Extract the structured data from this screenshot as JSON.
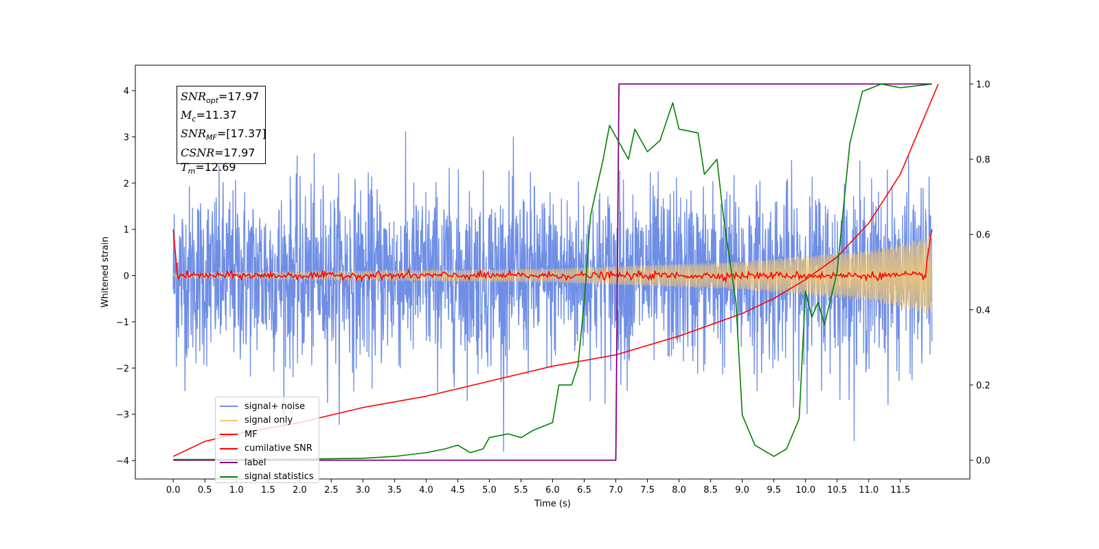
{
  "chart_data": {
    "type": "line",
    "xlabel": "Time (s)",
    "ylabel": "Whitened strain",
    "xlim": [
      -0.6,
      12.6
    ],
    "ylim": [
      -4.4,
      4.55
    ],
    "y2lim": [
      -0.05,
      1.05
    ],
    "x_ticks": [
      "0.0",
      "0.5",
      "1.0",
      "1.5",
      "2.0",
      "2.5",
      "3.0",
      "3.5",
      "4.0",
      "4.5",
      "5.0",
      "5.5",
      "6.0",
      "6.5",
      "7.0",
      "7.5",
      "8.0",
      "8.5",
      "9.0",
      "9.5",
      "10.0",
      "10.5",
      "11.0",
      "11.5"
    ],
    "y_ticks": [
      "4",
      "3",
      "2",
      "1",
      "0",
      "−1",
      "−2",
      "−3",
      "−4"
    ],
    "y2_ticks": [
      "1.0",
      "0.8",
      "0.6",
      "0.4",
      "0.2",
      "0.0"
    ],
    "annotation": {
      "snr_opt": "=17.97",
      "mc": "=11.37",
      "snr_mf": "=[17.37]",
      "csnr": "=17.97",
      "tm": "=12.69"
    },
    "legend": [
      "signal+ noise",
      "signal only",
      "MF",
      "cumilative SNR",
      "label",
      "signal statistics"
    ],
    "series": [
      {
        "name": "signal+ noise",
        "axis": "left",
        "color": "#6f8ee6",
        "description_values": "noise approx ±2 with spikes to ±3.6 over 0–12 s"
      },
      {
        "name": "signal only",
        "axis": "left",
        "color": "#f5c86e",
        "envelope": [
          [
            0.0,
            0.05
          ],
          [
            6.0,
            0.15
          ],
          [
            9.0,
            0.3
          ],
          [
            11.0,
            0.55
          ],
          [
            12.0,
            0.85
          ]
        ]
      },
      {
        "name": "MF",
        "axis": "left",
        "color": "#ff0000",
        "points": [
          [
            0.0,
            1.0
          ],
          [
            0.05,
            0.15
          ],
          [
            0.1,
            0.0
          ],
          [
            12.0,
            0.0
          ],
          [
            12.05,
            0.2
          ],
          [
            12.1,
            1.0
          ]
        ]
      },
      {
        "name": "cumilative SNR",
        "axis": "right",
        "color": "#ff0000",
        "points": [
          [
            0.0,
            0.01
          ],
          [
            0.5,
            0.05
          ],
          [
            1.0,
            0.07
          ],
          [
            2.0,
            0.1
          ],
          [
            3.0,
            0.14
          ],
          [
            4.0,
            0.17
          ],
          [
            5.0,
            0.21
          ],
          [
            6.0,
            0.25
          ],
          [
            7.0,
            0.28
          ],
          [
            8.0,
            0.33
          ],
          [
            9.0,
            0.39
          ],
          [
            9.5,
            0.43
          ],
          [
            10.0,
            0.48
          ],
          [
            10.5,
            0.54
          ],
          [
            11.0,
            0.63
          ],
          [
            11.5,
            0.76
          ],
          [
            11.8,
            0.88
          ],
          [
            12.1,
            1.0
          ]
        ]
      },
      {
        "name": "label",
        "axis": "right",
        "color": "#800080",
        "points": [
          [
            0.0,
            0.0
          ],
          [
            7.0,
            0.0
          ],
          [
            7.05,
            1.0
          ],
          [
            12.0,
            1.0
          ]
        ]
      },
      {
        "name": "signal statistics",
        "axis": "right",
        "color": "#008000",
        "points": [
          [
            0.0,
            0.002
          ],
          [
            1.0,
            0.002
          ],
          [
            2.0,
            0.003
          ],
          [
            2.5,
            0.004
          ],
          [
            3.0,
            0.005
          ],
          [
            3.5,
            0.01
          ],
          [
            4.0,
            0.02
          ],
          [
            4.3,
            0.03
          ],
          [
            4.5,
            0.04
          ],
          [
            4.7,
            0.02
          ],
          [
            4.9,
            0.03
          ],
          [
            5.0,
            0.06
          ],
          [
            5.3,
            0.07
          ],
          [
            5.5,
            0.06
          ],
          [
            5.7,
            0.08
          ],
          [
            6.0,
            0.1
          ],
          [
            6.1,
            0.2
          ],
          [
            6.3,
            0.2
          ],
          [
            6.4,
            0.25
          ],
          [
            6.5,
            0.42
          ],
          [
            6.6,
            0.65
          ],
          [
            6.8,
            0.8
          ],
          [
            6.9,
            0.89
          ],
          [
            7.0,
            0.86
          ],
          [
            7.2,
            0.8
          ],
          [
            7.3,
            0.88
          ],
          [
            7.5,
            0.82
          ],
          [
            7.7,
            0.85
          ],
          [
            7.9,
            0.95
          ],
          [
            8.0,
            0.88
          ],
          [
            8.3,
            0.87
          ],
          [
            8.4,
            0.76
          ],
          [
            8.6,
            0.8
          ],
          [
            8.7,
            0.65
          ],
          [
            8.9,
            0.42
          ],
          [
            9.0,
            0.12
          ],
          [
            9.2,
            0.04
          ],
          [
            9.5,
            0.01
          ],
          [
            9.7,
            0.03
          ],
          [
            9.9,
            0.11
          ],
          [
            10.0,
            0.45
          ],
          [
            10.1,
            0.38
          ],
          [
            10.2,
            0.42
          ],
          [
            10.3,
            0.36
          ],
          [
            10.5,
            0.5
          ],
          [
            10.7,
            0.84
          ],
          [
            10.9,
            0.98
          ],
          [
            11.2,
            1.0
          ],
          [
            11.5,
            0.99
          ],
          [
            12.0,
            1.0
          ]
        ]
      }
    ]
  }
}
